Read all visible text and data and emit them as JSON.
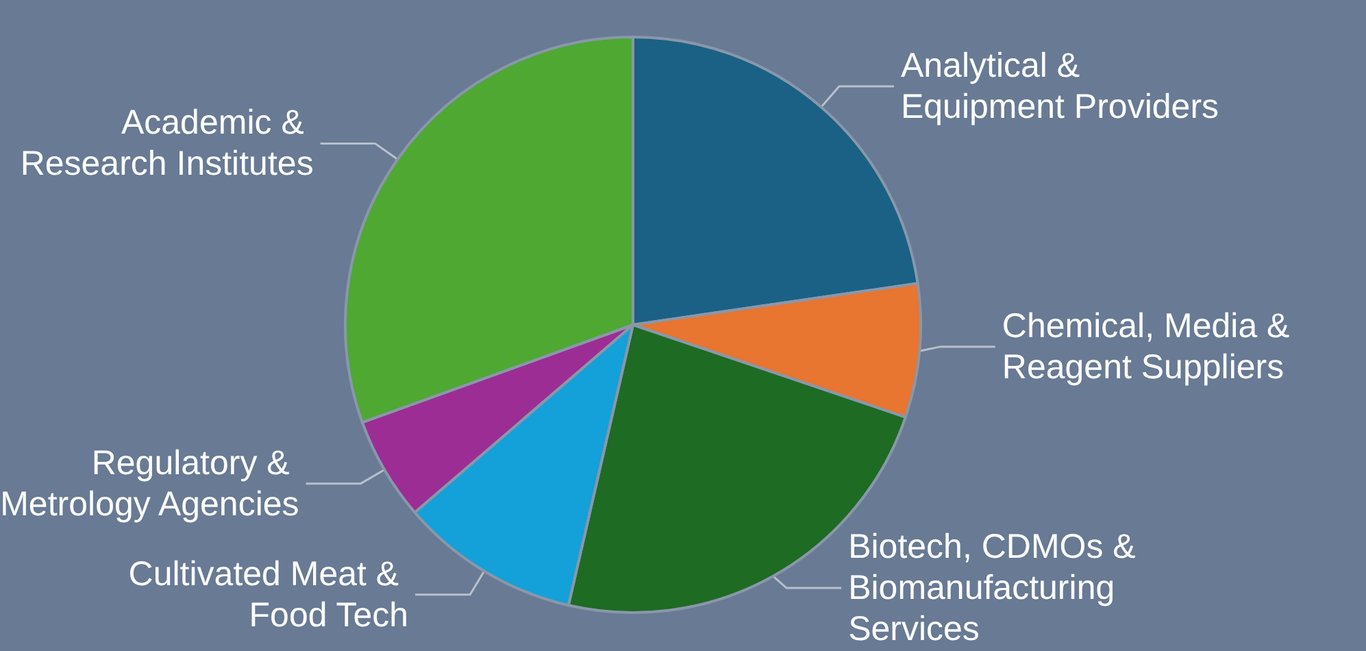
{
  "chart_data": {
    "type": "pie",
    "categories": [
      "Analytical & Equipment Providers",
      "Chemical, Media & Reagent Suppliers",
      "Biotech, CDMOs & Biomanufacturing Services",
      "Cultivated Meat & Food Tech",
      "Regulatory & Metrology Agencies",
      "Academic & Research Institutes"
    ],
    "values": [
      22.7,
      7.5,
      23.4,
      10.1,
      5.8,
      30.5
    ],
    "colors": [
      "#1a6185",
      "#e87530",
      "#1e6b24",
      "#14a0d8",
      "#9c2d94",
      "#4ea832"
    ]
  }
}
